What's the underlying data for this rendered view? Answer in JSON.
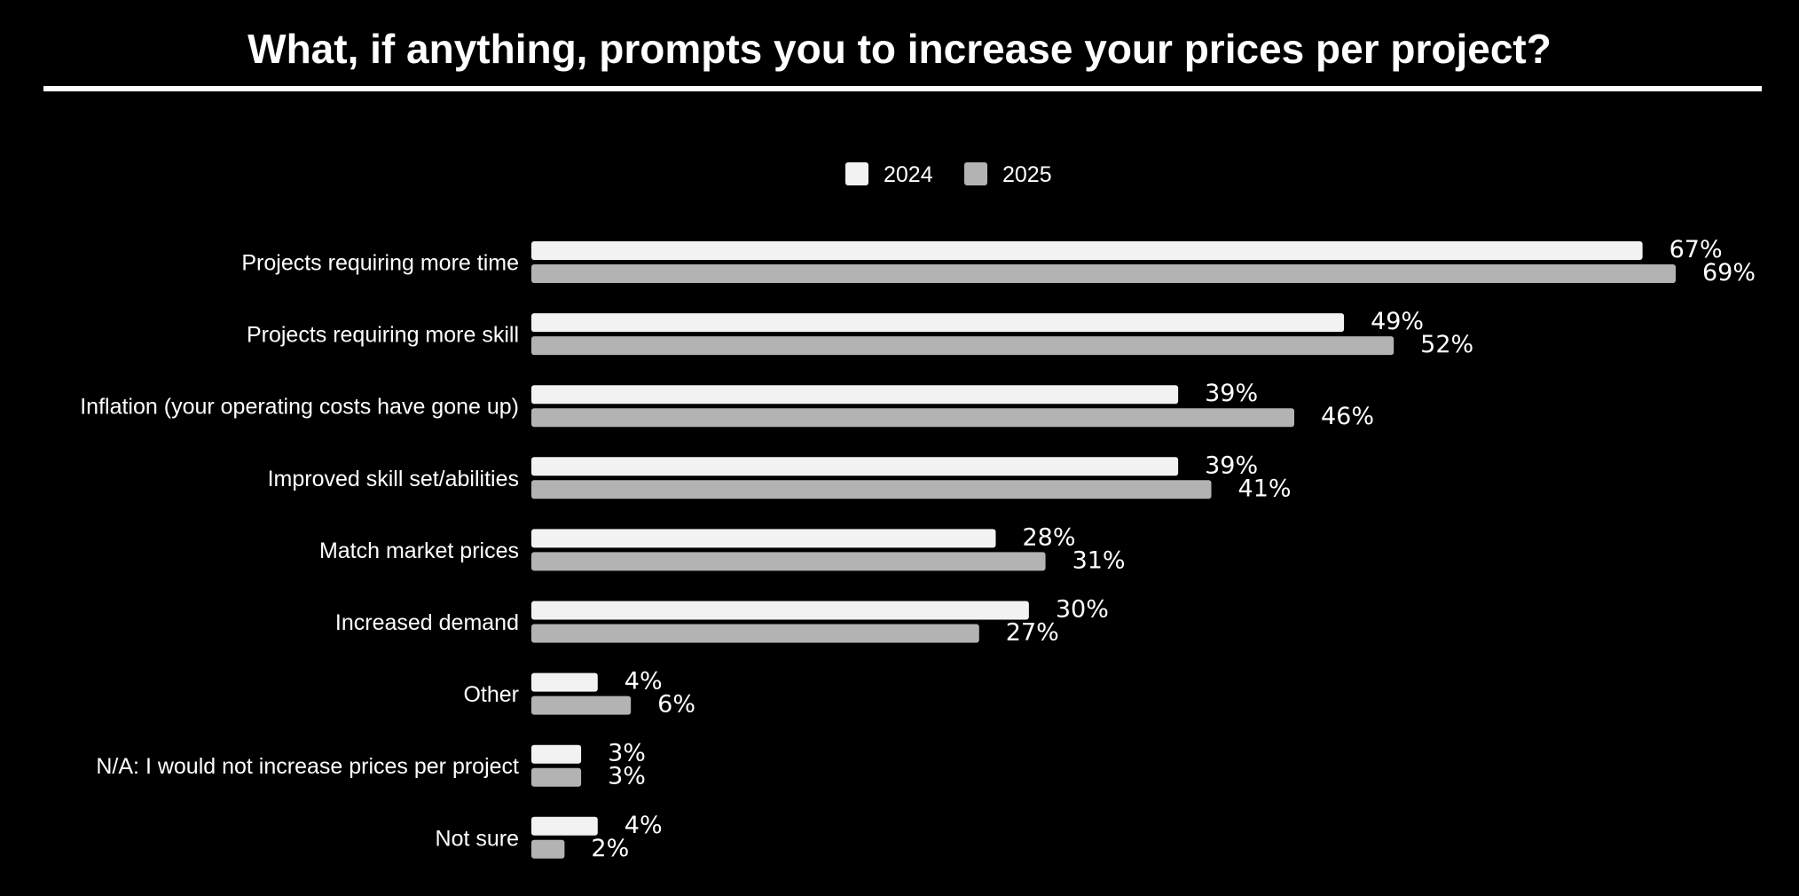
{
  "chart_data": {
    "type": "bar",
    "orientation": "horizontal",
    "title": "What, if anything, prompts you to increase your prices per project?",
    "categories": [
      "Projects requiring more time",
      "Projects requiring more skill",
      "Inflation (your operating costs have gone up)",
      "Improved skill set/abilities",
      "Match market prices",
      "Increased demand",
      "Other",
      "N/A: I would not increase prices per project",
      "Not sure"
    ],
    "series": [
      {
        "name": "2024",
        "color": "#f2f2f2",
        "values": [
          67,
          49,
          39,
          39,
          28,
          30,
          4,
          3,
          4
        ],
        "labels": [
          "67%",
          "49%",
          "39%",
          "39%",
          "28%",
          "30%",
          "4%",
          "3%",
          "4%"
        ]
      },
      {
        "name": "2025",
        "color": "#b3b3b3",
        "values": [
          69,
          52,
          46,
          41,
          31,
          27,
          6,
          3,
          2
        ],
        "labels": [
          "69%",
          "52%",
          "46%",
          "41%",
          "31%",
          "27%",
          "6%",
          "3%",
          "2%"
        ]
      }
    ],
    "value_unit": "%",
    "legend_position": "top-center",
    "grid": false,
    "xlim": [
      0,
      69
    ]
  }
}
